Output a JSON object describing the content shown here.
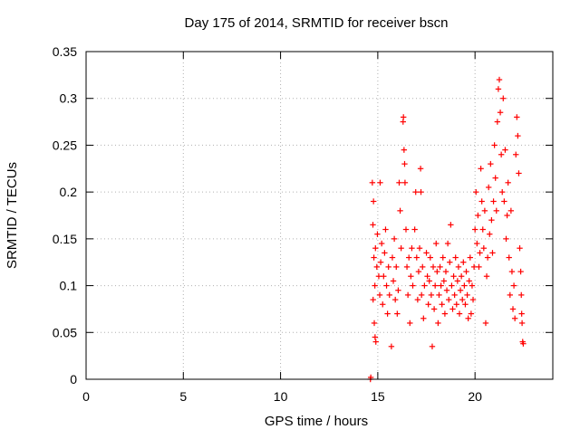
{
  "chart_data": {
    "type": "scatter",
    "title": "Day 175 of 2014, SRMTID for receiver bscn",
    "xlabel": "GPS time / hours",
    "ylabel": "SRMTID / TECUs",
    "xlim": [
      0,
      24
    ],
    "ylim": [
      0,
      0.35
    ],
    "xticks": [
      0,
      5,
      10,
      15,
      20
    ],
    "xtick_labels": [
      "0",
      "5",
      "10",
      "15",
      "20"
    ],
    "yticks": [
      0,
      0.05,
      0.1,
      0.15,
      0.2,
      0.25,
      0.3,
      0.35
    ],
    "ytick_labels": [
      "0",
      "0.05",
      "0.1",
      "0.15",
      "0.2",
      "0.25",
      "0.3",
      "0.35"
    ],
    "grid": true,
    "marker": "+",
    "series_color": "#ff0000",
    "series": [
      {
        "name": "SRMTID",
        "points": [
          [
            14.62,
            0.0
          ],
          [
            14.64,
            0.002
          ],
          [
            14.72,
            0.21
          ],
          [
            14.78,
            0.19
          ],
          [
            14.75,
            0.165
          ],
          [
            14.8,
            0.13
          ],
          [
            14.85,
            0.1
          ],
          [
            14.76,
            0.085
          ],
          [
            14.82,
            0.06
          ],
          [
            14.86,
            0.045
          ],
          [
            14.9,
            0.04
          ],
          [
            14.88,
            0.14
          ],
          [
            14.95,
            0.12
          ],
          [
            14.98,
            0.155
          ],
          [
            15.05,
            0.11
          ],
          [
            15.1,
            0.09
          ],
          [
            15.15,
            0.125
          ],
          [
            15.2,
            0.145
          ],
          [
            15.25,
            0.08
          ],
          [
            15.3,
            0.11
          ],
          [
            15.35,
            0.135
          ],
          [
            15.4,
            0.16
          ],
          [
            15.12,
            0.21
          ],
          [
            15.45,
            0.1
          ],
          [
            15.5,
            0.07
          ],
          [
            15.55,
            0.12
          ],
          [
            15.6,
            0.09
          ],
          [
            15.7,
            0.035
          ],
          [
            15.75,
            0.13
          ],
          [
            15.8,
            0.105
          ],
          [
            15.85,
            0.15
          ],
          [
            15.9,
            0.085
          ],
          [
            15.95,
            0.12
          ],
          [
            16.0,
            0.07
          ],
          [
            16.05,
            0.095
          ],
          [
            16.1,
            0.21
          ],
          [
            16.15,
            0.18
          ],
          [
            16.2,
            0.14
          ],
          [
            16.3,
            0.275
          ],
          [
            16.32,
            0.28
          ],
          [
            16.35,
            0.245
          ],
          [
            16.38,
            0.23
          ],
          [
            16.4,
            0.21
          ],
          [
            16.45,
            0.16
          ],
          [
            16.5,
            0.12
          ],
          [
            16.55,
            0.09
          ],
          [
            16.6,
            0.13
          ],
          [
            16.65,
            0.06
          ],
          [
            16.7,
            0.11
          ],
          [
            16.75,
            0.14
          ],
          [
            16.8,
            0.1
          ],
          [
            16.9,
            0.16
          ],
          [
            16.95,
            0.2
          ],
          [
            17.0,
            0.13
          ],
          [
            17.05,
            0.085
          ],
          [
            17.1,
            0.115
          ],
          [
            17.15,
            0.14
          ],
          [
            17.2,
            0.225
          ],
          [
            17.22,
            0.2
          ],
          [
            17.25,
            0.09
          ],
          [
            17.3,
            0.12
          ],
          [
            17.35,
            0.065
          ],
          [
            17.4,
            0.1
          ],
          [
            17.5,
            0.135
          ],
          [
            17.55,
            0.11
          ],
          [
            17.6,
            0.08
          ],
          [
            17.65,
            0.105
          ],
          [
            17.7,
            0.13
          ],
          [
            17.75,
            0.09
          ],
          [
            17.8,
            0.035
          ],
          [
            17.85,
            0.12
          ],
          [
            17.9,
            0.075
          ],
          [
            17.95,
            0.1
          ],
          [
            18.0,
            0.145
          ],
          [
            18.05,
            0.115
          ],
          [
            18.1,
            0.06
          ],
          [
            18.15,
            0.09
          ],
          [
            18.2,
            0.12
          ],
          [
            18.25,
            0.1
          ],
          [
            18.3,
            0.08
          ],
          [
            18.35,
            0.13
          ],
          [
            18.4,
            0.105
          ],
          [
            18.45,
            0.07
          ],
          [
            18.5,
            0.115
          ],
          [
            18.55,
            0.095
          ],
          [
            18.6,
            0.145
          ],
          [
            18.65,
            0.085
          ],
          [
            18.7,
            0.125
          ],
          [
            18.75,
            0.165
          ],
          [
            18.8,
            0.1
          ],
          [
            18.85,
            0.075
          ],
          [
            18.9,
            0.11
          ],
          [
            18.95,
            0.09
          ],
          [
            19.0,
            0.13
          ],
          [
            19.05,
            0.08
          ],
          [
            19.1,
            0.105
          ],
          [
            19.15,
            0.12
          ],
          [
            19.2,
            0.07
          ],
          [
            19.25,
            0.095
          ],
          [
            19.3,
            0.11
          ],
          [
            19.35,
            0.085
          ],
          [
            19.4,
            0.125
          ],
          [
            19.45,
            0.1
          ],
          [
            19.5,
            0.08
          ],
          [
            19.55,
            0.115
          ],
          [
            19.6,
            0.09
          ],
          [
            19.65,
            0.065
          ],
          [
            19.7,
            0.105
          ],
          [
            19.75,
            0.13
          ],
          [
            19.8,
            0.07
          ],
          [
            19.85,
            0.1
          ],
          [
            19.9,
            0.085
          ],
          [
            19.95,
            0.12
          ],
          [
            20.0,
            0.16
          ],
          [
            20.05,
            0.2
          ],
          [
            20.1,
            0.145
          ],
          [
            20.15,
            0.175
          ],
          [
            20.2,
            0.12
          ],
          [
            20.25,
            0.135
          ],
          [
            20.3,
            0.225
          ],
          [
            20.35,
            0.19
          ],
          [
            20.4,
            0.16
          ],
          [
            20.45,
            0.14
          ],
          [
            20.5,
            0.18
          ],
          [
            20.55,
            0.06
          ],
          [
            20.6,
            0.11
          ],
          [
            20.65,
            0.13
          ],
          [
            20.7,
            0.205
          ],
          [
            20.75,
            0.155
          ],
          [
            20.8,
            0.23
          ],
          [
            20.85,
            0.17
          ],
          [
            20.9,
            0.135
          ],
          [
            20.95,
            0.19
          ],
          [
            21.0,
            0.25
          ],
          [
            21.05,
            0.215
          ],
          [
            21.1,
            0.18
          ],
          [
            21.15,
            0.275
          ],
          [
            21.2,
            0.31
          ],
          [
            21.25,
            0.32
          ],
          [
            21.3,
            0.285
          ],
          [
            21.35,
            0.24
          ],
          [
            21.4,
            0.2
          ],
          [
            21.45,
            0.3
          ],
          [
            21.5,
            0.19
          ],
          [
            21.55,
            0.245
          ],
          [
            21.6,
            0.15
          ],
          [
            21.65,
            0.175
          ],
          [
            21.7,
            0.21
          ],
          [
            21.75,
            0.13
          ],
          [
            21.8,
            0.09
          ],
          [
            21.85,
            0.18
          ],
          [
            21.9,
            0.115
          ],
          [
            21.95,
            0.075
          ],
          [
            22.0,
            0.1
          ],
          [
            22.05,
            0.065
          ],
          [
            22.1,
            0.24
          ],
          [
            22.15,
            0.28
          ],
          [
            22.2,
            0.26
          ],
          [
            22.25,
            0.22
          ],
          [
            22.3,
            0.14
          ],
          [
            22.35,
            0.115
          ],
          [
            22.38,
            0.09
          ],
          [
            22.4,
            0.07
          ],
          [
            22.42,
            0.06
          ],
          [
            22.45,
            0.04
          ],
          [
            22.48,
            0.038
          ]
        ]
      }
    ]
  }
}
